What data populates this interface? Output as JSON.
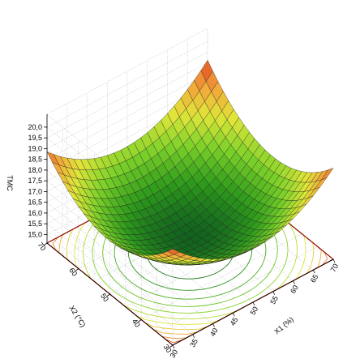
{
  "chart_data": {
    "type": "surface3d",
    "zlabel": "TMC",
    "ylabel": "X2 (°C)",
    "xlabel": "X1 (%)",
    "z_ticks": [
      "15,0",
      "15,5",
      "16,0",
      "16,5",
      "17,0",
      "17,5",
      "18,0",
      "18,5",
      "19,0",
      "19,5",
      "20,0"
    ],
    "y_ticks": [
      "70",
      "60",
      "50",
      "40",
      "30"
    ],
    "x_ticks": [
      "30",
      "35",
      "40",
      "45",
      "50",
      "55",
      "60",
      "65",
      "70"
    ],
    "x_range": [
      30,
      70
    ],
    "y_range": [
      30,
      70
    ],
    "z_range": [
      15,
      20
    ],
    "surface": {
      "model": "quadratic",
      "center": {
        "x1": 50,
        "x2": 50
      },
      "z_min": 15.2,
      "corners": {
        "x1_30_x2_30": 18.2,
        "x1_70_x2_70": 20.0,
        "x1_30_x2_70": 18.9,
        "x1_70_x2_30": 18.8
      }
    },
    "colormap": [
      "#0f5a1f",
      "#2e9a1c",
      "#7cd12a",
      "#e0e63a",
      "#f3a23a",
      "#d93a1a",
      "#8f0b07"
    ],
    "contour_projection": true,
    "grid": true
  }
}
